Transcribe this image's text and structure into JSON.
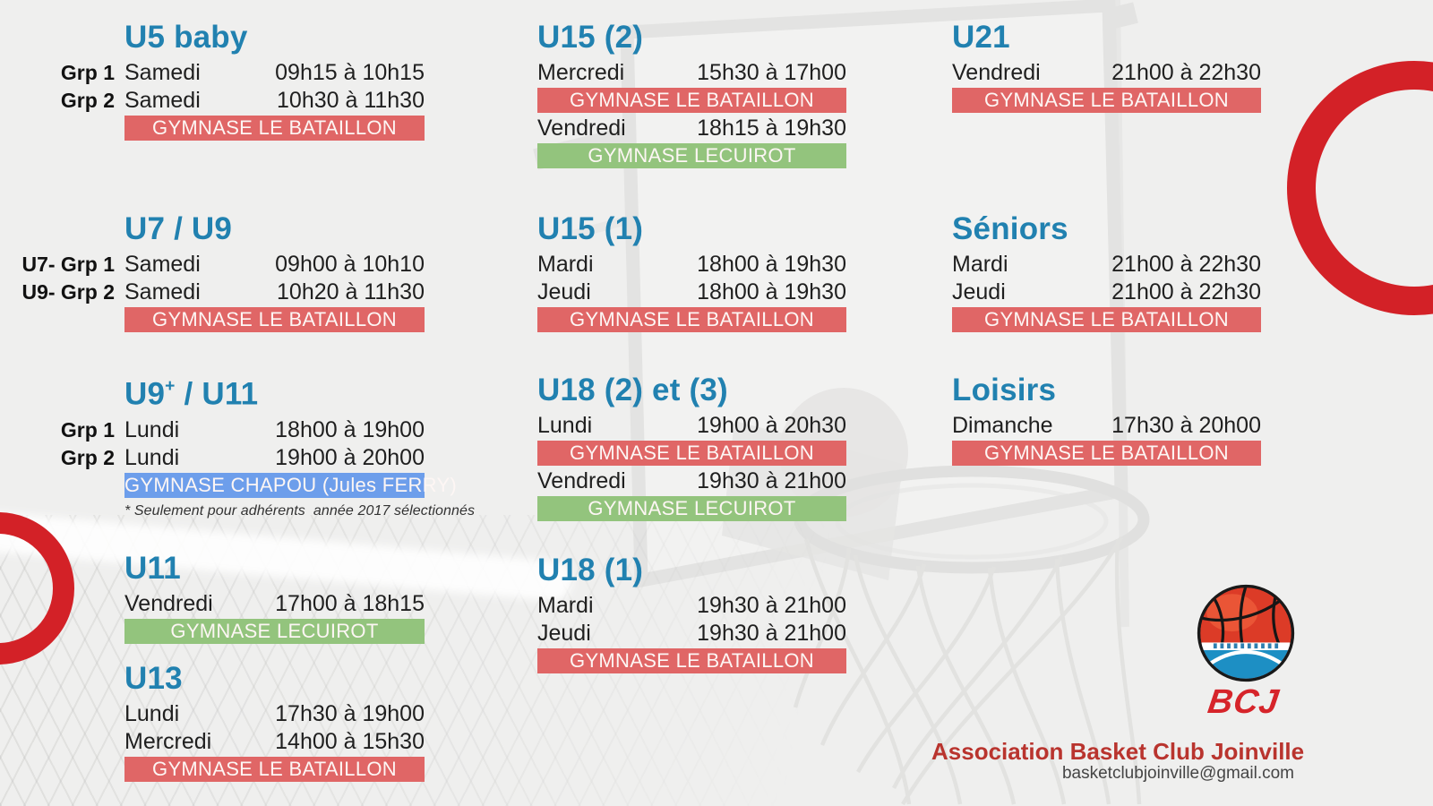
{
  "colors": {
    "title_blue": "#2181b0",
    "banner_red": "#e06666",
    "banner_green": "#93c47d",
    "banner_blue": "#6d9eeb",
    "banner_text": "#fdf6f4",
    "accent_red": "#d32127",
    "logo_red": "#d6242a",
    "club_red": "#b9342e",
    "text_dark": "#1f1f1f"
  },
  "groups": [
    {
      "id": "u5",
      "title": "U5 baby",
      "items": [
        {
          "type": "row",
          "label": "Grp 1",
          "day": "Samedi",
          "time": "09h15 à 10h15"
        },
        {
          "type": "row",
          "label": "Grp 2",
          "day": "Samedi",
          "time": "10h30 à 11h30"
        },
        {
          "type": "banner",
          "text": "GYMNASE LE BATAILLON",
          "color": "red"
        }
      ]
    },
    {
      "id": "u7u9",
      "title": "U7 / U9",
      "items": [
        {
          "type": "row",
          "label": "U7- Grp 1",
          "day": "Samedi",
          "time": "09h00 à 10h10"
        },
        {
          "type": "row",
          "label": "U9- Grp 2",
          "day": "Samedi",
          "time": "10h20 à 11h30"
        },
        {
          "type": "banner",
          "text": "GYMNASE LE BATAILLON",
          "color": "red"
        }
      ]
    },
    {
      "id": "u9u11",
      "title": "U9",
      "title_sup": "+",
      "title_rest": " / U11",
      "items": [
        {
          "type": "row",
          "label": "Grp 1",
          "day": "Lundi",
          "time": "18h00 à 19h00"
        },
        {
          "type": "row",
          "label": "Grp 2",
          "day": "Lundi",
          "time": "19h00 à 20h00"
        },
        {
          "type": "banner",
          "text": "GYMNASE CHAPOU (Jules FERRY)",
          "color": "blue"
        },
        {
          "type": "note",
          "text": "* Seulement pour adhérents  année 2017 sélectionnés"
        }
      ]
    },
    {
      "id": "u11",
      "title": "U11",
      "items": [
        {
          "type": "row",
          "label": "",
          "day": "Vendredi",
          "time": "17h00 à 18h15"
        },
        {
          "type": "banner",
          "text": "GYMNASE LECUIROT",
          "color": "green"
        }
      ]
    },
    {
      "id": "u13",
      "title": "U13",
      "items": [
        {
          "type": "row",
          "label": "",
          "day": "Lundi",
          "time": "17h30 à 19h00"
        },
        {
          "type": "row",
          "label": "",
          "day": "Mercredi",
          "time": "14h00 à 15h30"
        },
        {
          "type": "banner",
          "text": "GYMNASE LE BATAILLON",
          "color": "red"
        }
      ]
    },
    {
      "id": "u15-2",
      "title": "U15 (2)",
      "items": [
        {
          "type": "row",
          "label": "",
          "day": "Mercredi",
          "time": "15h30 à 17h00"
        },
        {
          "type": "banner",
          "text": "GYMNASE LE BATAILLON",
          "color": "red"
        },
        {
          "type": "row",
          "label": "",
          "day": "Vendredi",
          "time": "18h15 à 19h30"
        },
        {
          "type": "banner",
          "text": "GYMNASE LECUIROT",
          "color": "green"
        }
      ]
    },
    {
      "id": "u15-1",
      "title": "U15 (1)",
      "items": [
        {
          "type": "row",
          "label": "",
          "day": "Mardi",
          "time": "18h00 à 19h30"
        },
        {
          "type": "row",
          "label": "",
          "day": "Jeudi",
          "time": "18h00 à 19h30"
        },
        {
          "type": "banner",
          "text": "GYMNASE LE BATAILLON",
          "color": "red"
        }
      ]
    },
    {
      "id": "u18-23",
      "title": "U18 (2) et (3)",
      "items": [
        {
          "type": "row",
          "label": "",
          "day": "Lundi",
          "time": "19h00 à 20h30"
        },
        {
          "type": "banner",
          "text": "GYMNASE LE BATAILLON",
          "color": "red"
        },
        {
          "type": "row",
          "label": "",
          "day": "Vendredi",
          "time": "19h30 à 21h00"
        },
        {
          "type": "banner",
          "text": "GYMNASE LECUIROT",
          "color": "green"
        }
      ]
    },
    {
      "id": "u18-1",
      "title": "U18 (1)",
      "items": [
        {
          "type": "row",
          "label": "",
          "day": "Mardi",
          "time": "19h30 à 21h00"
        },
        {
          "type": "row",
          "label": "",
          "day": "Jeudi",
          "time": "19h30 à 21h00"
        },
        {
          "type": "banner",
          "text": "GYMNASE LE BATAILLON",
          "color": "red"
        }
      ]
    },
    {
      "id": "u21",
      "title": "U21",
      "items": [
        {
          "type": "row",
          "label": "",
          "day": "Vendredi",
          "time": "21h00 à 22h30"
        },
        {
          "type": "banner",
          "text": "GYMNASE LE BATAILLON",
          "color": "red"
        }
      ]
    },
    {
      "id": "seniors",
      "title": "Séniors",
      "items": [
        {
          "type": "row",
          "label": "",
          "day": "Mardi",
          "time": "21h00 à 22h30"
        },
        {
          "type": "row",
          "label": "",
          "day": "Jeudi",
          "time": "21h00 à 22h30"
        },
        {
          "type": "banner",
          "text": "GYMNASE LE BATAILLON",
          "color": "red"
        }
      ]
    },
    {
      "id": "loisirs",
      "title": "Loisirs",
      "items": [
        {
          "type": "row",
          "label": "",
          "day": "Dimanche",
          "time": "17h30 à 20h00"
        },
        {
          "type": "banner",
          "text": "GYMNASE LE BATAILLON",
          "color": "red"
        }
      ]
    }
  ],
  "footer": {
    "logo_text": "BCJ",
    "club_name": "Association Basket Club Joinville",
    "email": "basketclubjoinville@gmail.com"
  }
}
